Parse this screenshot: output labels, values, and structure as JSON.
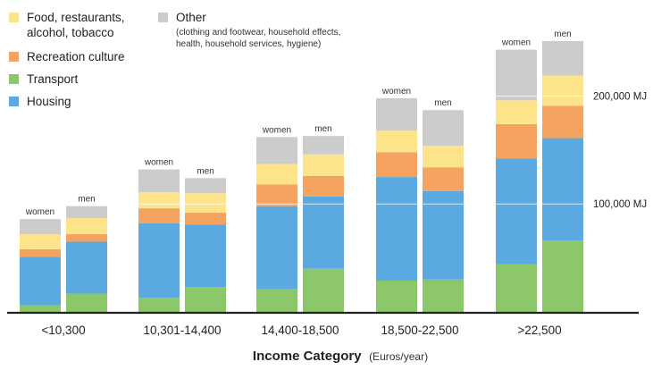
{
  "chart_data": {
    "type": "bar",
    "stacked": true,
    "categories": [
      "<10,300",
      "10,301-14,400",
      "14,400-18,500",
      "18,500-22,500",
      ">22,500"
    ],
    "bar_labels": [
      "women",
      "men"
    ],
    "xlabel": "Income Category",
    "xlabel_unit": "(Euros/year)",
    "ylim": [
      0,
      265000
    ],
    "y_ticks": [
      {
        "value": 100000,
        "label": "100,000 MJ"
      },
      {
        "value": 200000,
        "label": "200,000 MJ"
      }
    ],
    "grid": "reference lines across bars at labeled values",
    "legend_position": "top-left",
    "series": [
      {
        "key": "housing",
        "name": "Housing",
        "color": "#5aa9e0",
        "values": {
          "women": [
            45000,
            69000,
            77000,
            96000,
            98000
          ],
          "men": [
            48000,
            58000,
            67000,
            82000,
            95000
          ]
        }
      },
      {
        "key": "transport",
        "name": "Transport",
        "color": "#8cc86a",
        "values": {
          "women": [
            6000,
            13000,
            21000,
            29000,
            44000
          ],
          "men": [
            17000,
            23000,
            40000,
            30000,
            66000
          ]
        }
      },
      {
        "key": "recreation",
        "name": "Recreation culture",
        "color": "#f4a460",
        "values": {
          "women": [
            7000,
            14000,
            20000,
            23000,
            32000
          ],
          "men": [
            7000,
            11000,
            19000,
            22000,
            30000
          ]
        }
      },
      {
        "key": "food",
        "name": "Food, restaurants, alcohol, tobacco",
        "color": "#fde48a",
        "values": {
          "women": [
            14000,
            15000,
            19000,
            20000,
            22000
          ],
          "men": [
            15000,
            18000,
            20000,
            20000,
            28000
          ]
        }
      },
      {
        "key": "other",
        "name": "Other",
        "name_detail": "(clothing and footwear, household effects, health, household services, hygiene)",
        "color": "#cccccc",
        "values": {
          "women": [
            14000,
            21000,
            25000,
            30000,
            47000
          ],
          "men": [
            11000,
            14000,
            17000,
            33000,
            32000
          ]
        }
      }
    ],
    "legend": [
      {
        "key": "food",
        "line1": "Food, restaurants,",
        "line2": "alcohol, tobacco",
        "color": "#fde48a"
      },
      {
        "key": "recreation",
        "line1": "Recreation culture",
        "color": "#f4a460"
      },
      {
        "key": "transport",
        "line1": "Transport",
        "color": "#8cc86a"
      },
      {
        "key": "housing",
        "line1": "Housing",
        "color": "#5aa9e0"
      },
      {
        "key": "other",
        "line1": "Other",
        "detail1": "(clothing and footwear, household effects,",
        "detail2": "health, household services, hygiene)",
        "color": "#cccccc"
      }
    ]
  }
}
